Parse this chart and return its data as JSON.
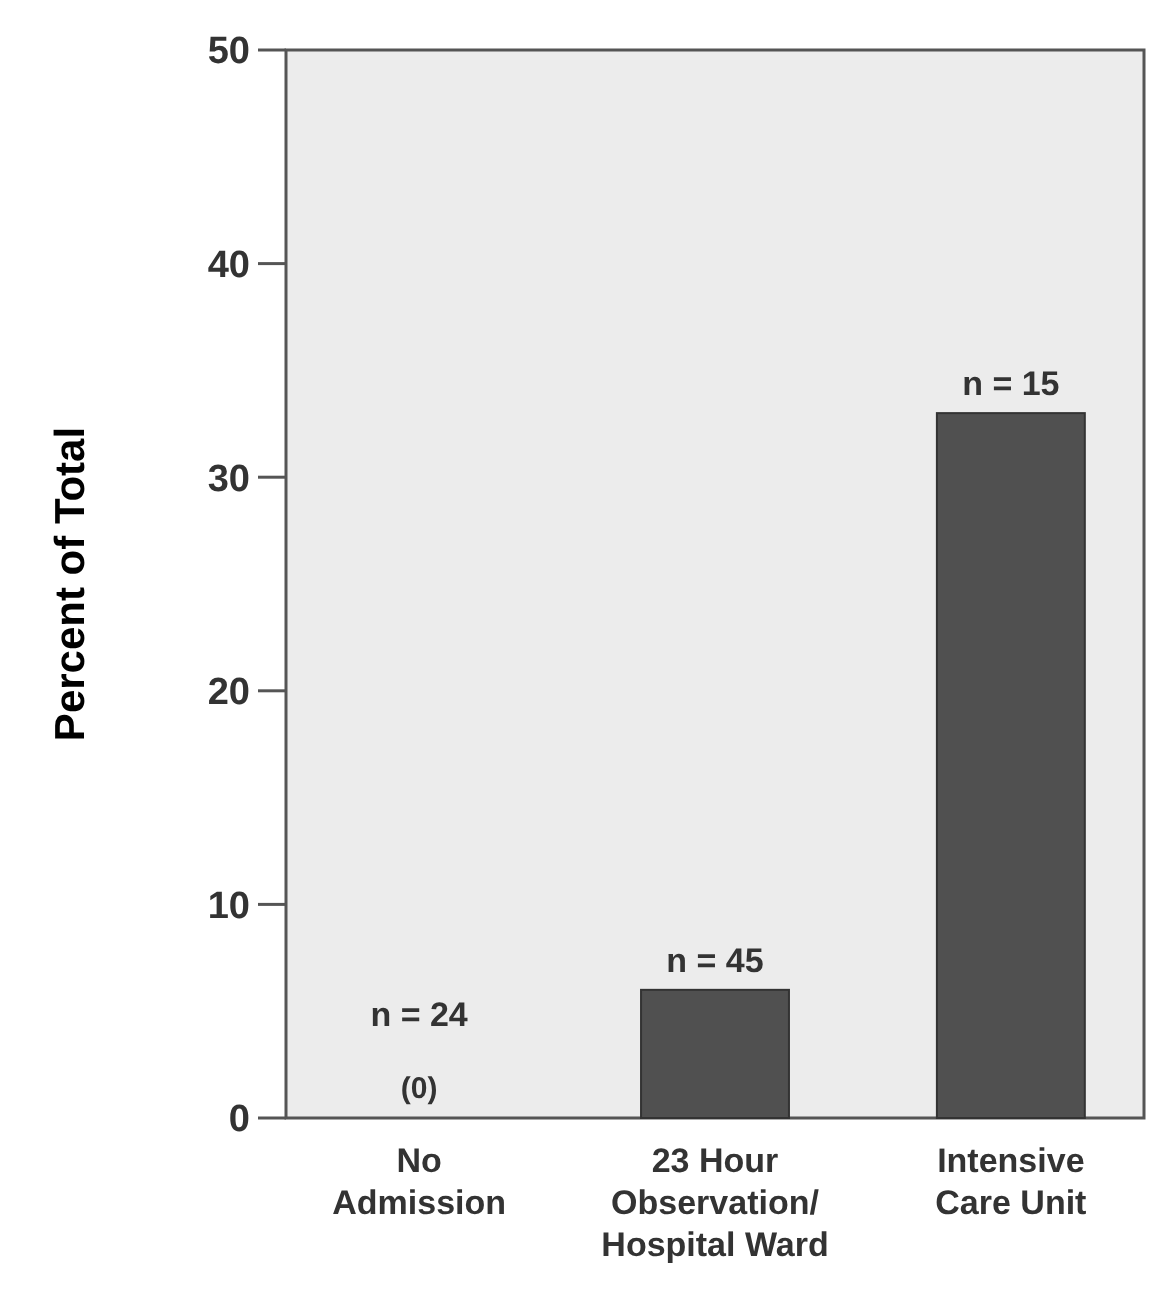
{
  "chart_data": {
    "type": "bar",
    "ylabel": "Percent of Total",
    "categories": [
      "No\nAdmission",
      "23 Hour\nObservation/\nHospital Ward",
      "Intensive\nCare Unit"
    ],
    "values": [
      0,
      6,
      33
    ],
    "color": "#505050",
    "value_labels": [
      "(0)",
      null,
      null
    ],
    "annotations": [
      {
        "text": "n = 24",
        "x": "No\nAdmission",
        "y": 0
      },
      {
        "text": "n = 45",
        "x": "23 Hour\nObservation/\nHospital Ward",
        "y": 6
      },
      {
        "text": "n = 15",
        "x": "Intensive\nCare Unit",
        "y": 33
      }
    ],
    "ylim": [
      0,
      50
    ],
    "yticks": [
      0,
      10,
      20,
      30,
      40,
      50
    ],
    "grid": false
  }
}
